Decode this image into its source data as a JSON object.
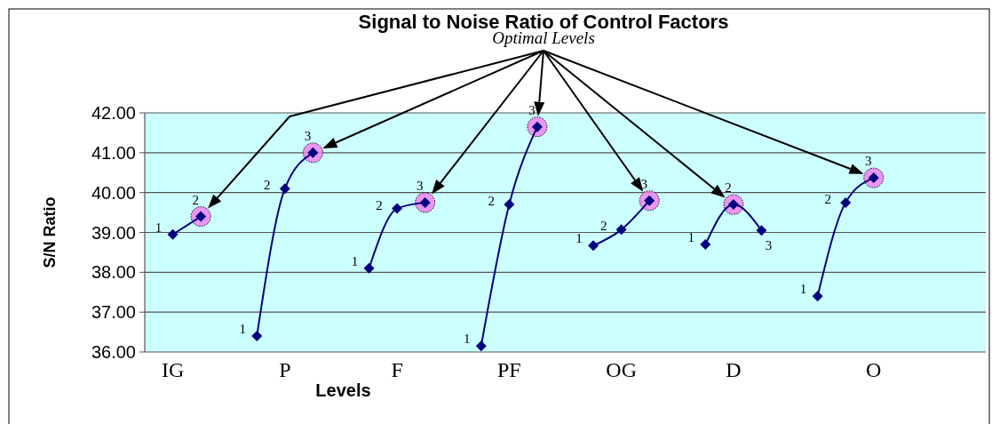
{
  "chart_data": {
    "type": "line",
    "title": "Signal to Noise Ratio of Control Factors",
    "xlabel": "Levels",
    "ylabel": "S/N Ratio",
    "annotations": [
      "Optimal Levels",
      "1",
      "2",
      "1",
      "2",
      "3",
      "1",
      "2",
      "3",
      "1",
      "2",
      "3",
      "1",
      "2",
      "3",
      "1",
      "2",
      "3",
      "1",
      "2",
      "3"
    ],
    "categories": [
      "IG",
      null,
      null,
      null,
      "P",
      null,
      null,
      null,
      "F",
      null,
      null,
      null,
      "PF",
      null,
      null,
      null,
      "OG",
      null,
      null,
      null,
      "D",
      null,
      null,
      null,
      null,
      "O",
      null,
      null,
      null
    ],
    "ylim": [
      36,
      42
    ],
    "yticks": [
      {
        "value": 36,
        "label": "36.00"
      },
      {
        "value": 37,
        "label": "37.00"
      },
      {
        "value": 38,
        "label": "38.00"
      },
      {
        "value": 39,
        "label": "39.00"
      },
      {
        "value": 40,
        "label": "40.00"
      },
      {
        "value": 41,
        "label": "41.00"
      },
      {
        "value": 42,
        "label": "42.00"
      }
    ],
    "grid": "y",
    "marker": "diamond",
    "line_style": "solid",
    "series": [
      {
        "color": "#000080",
        "values": [
          38.95,
          39.4,
          null,
          null,
          null,
          null,
          null,
          null,
          null,
          null,
          null,
          null,
          null,
          null,
          null,
          null,
          null,
          null,
          null,
          null,
          null,
          null,
          null,
          null,
          null,
          null,
          null,
          null,
          null
        ]
      },
      {
        "color": "#000080",
        "values": [
          null,
          null,
          null,
          36.4,
          40.1,
          41.0,
          null,
          null,
          null,
          null,
          null,
          null,
          null,
          null,
          null,
          null,
          null,
          null,
          null,
          null,
          null,
          null,
          null,
          null,
          null,
          null,
          null,
          null,
          null
        ]
      },
      {
        "color": "#000080",
        "values": [
          null,
          null,
          null,
          null,
          null,
          null,
          null,
          38.1,
          39.6,
          39.75,
          null,
          null,
          null,
          null,
          null,
          null,
          null,
          null,
          null,
          null,
          null,
          null,
          null,
          null,
          null,
          null,
          null,
          null,
          null
        ]
      },
      {
        "color": "#000080",
        "values": [
          null,
          null,
          null,
          null,
          null,
          null,
          null,
          null,
          null,
          null,
          null,
          36.15,
          39.7,
          41.65,
          null,
          null,
          null,
          null,
          null,
          null,
          null,
          null,
          null,
          null,
          null,
          null,
          null,
          null,
          null
        ]
      },
      {
        "color": "#000080",
        "values": [
          null,
          null,
          null,
          null,
          null,
          null,
          null,
          null,
          null,
          null,
          null,
          null,
          null,
          null,
          null,
          38.67,
          39.07,
          39.8,
          null,
          null,
          null,
          null,
          null,
          null,
          null,
          null,
          null,
          null,
          null
        ]
      },
      {
        "color": "#000080",
        "values": [
          null,
          null,
          null,
          null,
          null,
          null,
          null,
          null,
          null,
          null,
          null,
          null,
          null,
          null,
          null,
          null,
          null,
          null,
          null,
          38.7,
          39.7,
          39.05,
          null,
          null,
          null,
          null,
          null,
          null,
          null
        ]
      },
      {
        "color": "#000080",
        "values": [
          null,
          null,
          null,
          null,
          null,
          null,
          null,
          null,
          null,
          null,
          null,
          null,
          null,
          null,
          null,
          null,
          null,
          null,
          null,
          null,
          null,
          null,
          null,
          37.4,
          39.75,
          40.37,
          null,
          null,
          null
        ]
      },
      {
        "type": "scatter",
        "marker": "circle",
        "color": "#ee82ee",
        "values": [
          null,
          39.4,
          null,
          null,
          null,
          41.0,
          null,
          null,
          null,
          39.75,
          null,
          null,
          null,
          41.65,
          null,
          null,
          null,
          39.8,
          null,
          null,
          39.7,
          null,
          null,
          null,
          null,
          40.37,
          null,
          null,
          null
        ]
      }
    ]
  }
}
